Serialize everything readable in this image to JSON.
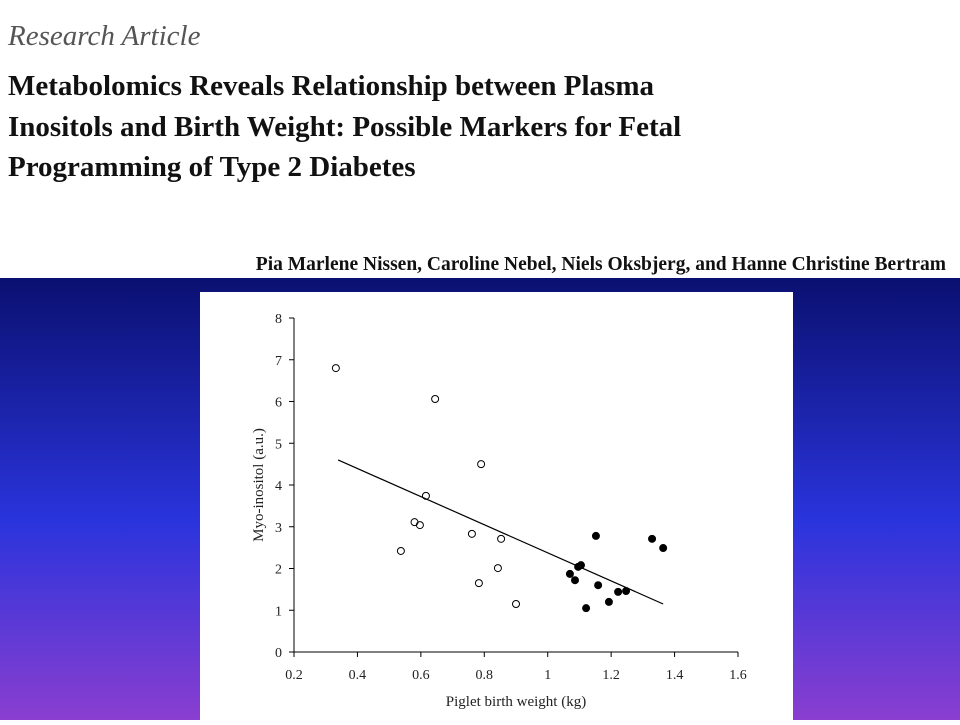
{
  "header": {
    "label": "Research Article",
    "title_lines": [
      "Metabolomics Reveals Relationship between Plasma",
      "Inositols and Birth Weight: Possible Markers for Fetal",
      "Programming of Type 2 Diabetes"
    ],
    "authors": "Pia Marlene Nissen, Caroline Nebel, Niels Oksbjerg, and Hanne Christine Bertram"
  },
  "chart_data": {
    "type": "scatter",
    "x_label": "Piglet birth weight (kg)",
    "y_label": "Myo-inositol (a.u.)",
    "xlim": [
      0.2,
      1.6
    ],
    "xticks": [
      0.2,
      0.4,
      0.6,
      0.8,
      1,
      1.2,
      1.4,
      1.6
    ],
    "ylim": [
      0,
      8
    ],
    "yticks": [
      0,
      1,
      2,
      3,
      4,
      5,
      6,
      7,
      8
    ],
    "series": [
      {
        "color": "#000000",
        "fill": "none",
        "x": [
          0.332,
          0.645,
          0.616,
          0.79,
          0.58,
          0.597,
          0.537,
          0.761,
          0.853,
          0.843,
          0.783,
          0.9
        ],
        "values": [
          6.8,
          6.06,
          3.74,
          4.5,
          3.11,
          3.04,
          2.42,
          2.83,
          2.71,
          2.01,
          1.65,
          1.15
        ]
      },
      {
        "color": "#000000",
        "fill": "#000000",
        "x": [
          1.152,
          1.329,
          1.364,
          1.07,
          1.096,
          1.105,
          1.086,
          1.159,
          1.222,
          1.247,
          1.193,
          1.121
        ],
        "values": [
          2.78,
          2.71,
          2.49,
          1.87,
          2.04,
          2.08,
          1.72,
          1.6,
          1.44,
          1.46,
          1.2,
          1.05
        ]
      }
    ],
    "trend_line": {
      "x": [
        0.339,
        1.364
      ],
      "y": [
        4.6,
        1.15
      ]
    }
  }
}
